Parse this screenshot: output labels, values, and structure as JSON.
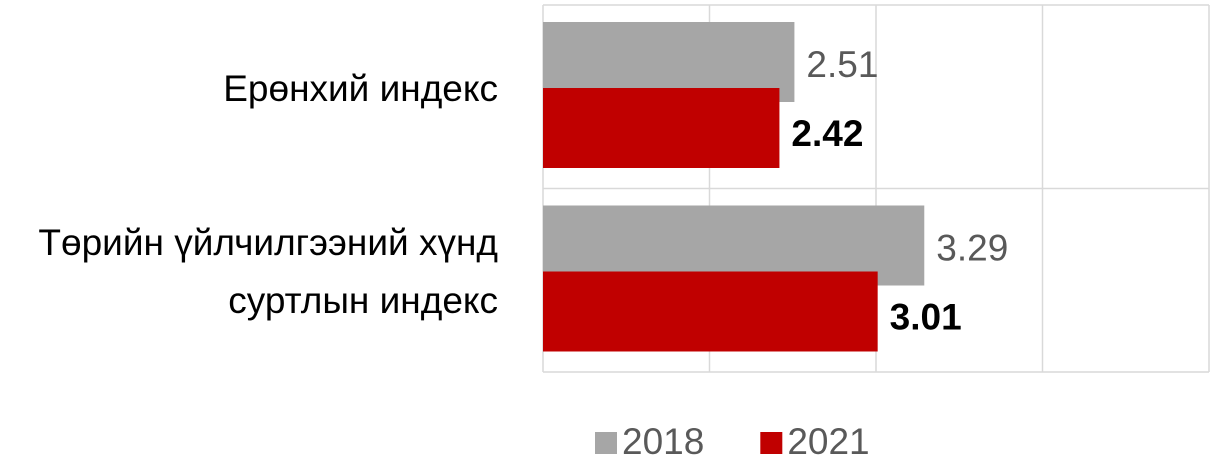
{
  "chart_data": {
    "type": "hbar",
    "categories": [
      "Ерөнхий индекс",
      "Төрийн үйлчилгээний хүнд суртлын индекс"
    ],
    "series": [
      {
        "name": "2018",
        "color": "#a6a6a6",
        "values": [
          2.51,
          3.29
        ]
      },
      {
        "name": "2021",
        "color": "#c00000",
        "values": [
          2.42,
          3.01
        ]
      }
    ],
    "xlim": [
      1,
      5
    ],
    "xticks": [
      1,
      2,
      3,
      4,
      5
    ],
    "grid": true
  }
}
